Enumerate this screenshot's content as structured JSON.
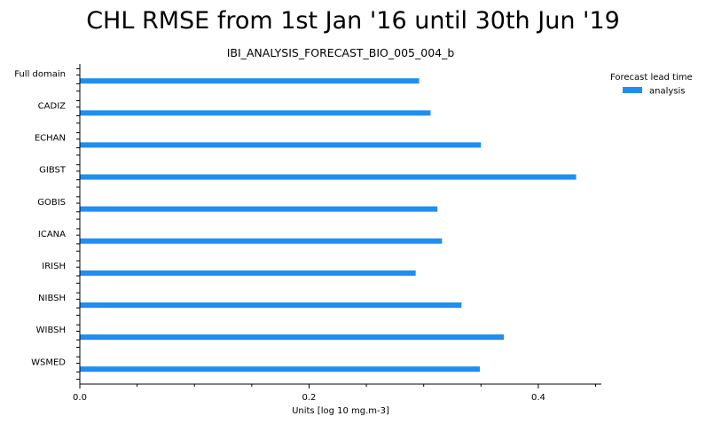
{
  "chart_data": {
    "type": "bar",
    "orientation": "horizontal",
    "title": "CHL RMSE from 1st Jan '16 until 30th Jun '19",
    "subtitle": "IBI_ANALYSIS_FORECAST_BIO_005_004_b",
    "xlabel": "Units [log 10 mg.m-3]",
    "ylabel": "",
    "xlim": [
      0.0,
      0.455
    ],
    "x_ticks": [
      0.0,
      0.2,
      0.4
    ],
    "x_tick_labels": [
      "0.0",
      "0.2",
      "0.4"
    ],
    "x_minor_ticks": [
      0.05,
      0.1,
      0.15,
      0.25,
      0.3,
      0.35,
      0.45
    ],
    "categories": [
      "Full domain",
      "CADIZ",
      "ECHAN",
      "GIBST",
      "GOBIS",
      "ICANA",
      "IRISH",
      "NIBSH",
      "WIBSH",
      "WSMED"
    ],
    "series": [
      {
        "name": "analysis",
        "color": "#1f8ef1",
        "values": [
          0.296,
          0.306,
          0.35,
          0.433,
          0.312,
          0.316,
          0.293,
          0.333,
          0.37,
          0.349
        ]
      }
    ],
    "legend": {
      "title": "Forecast lead time",
      "placement": "right"
    },
    "grid": false
  }
}
